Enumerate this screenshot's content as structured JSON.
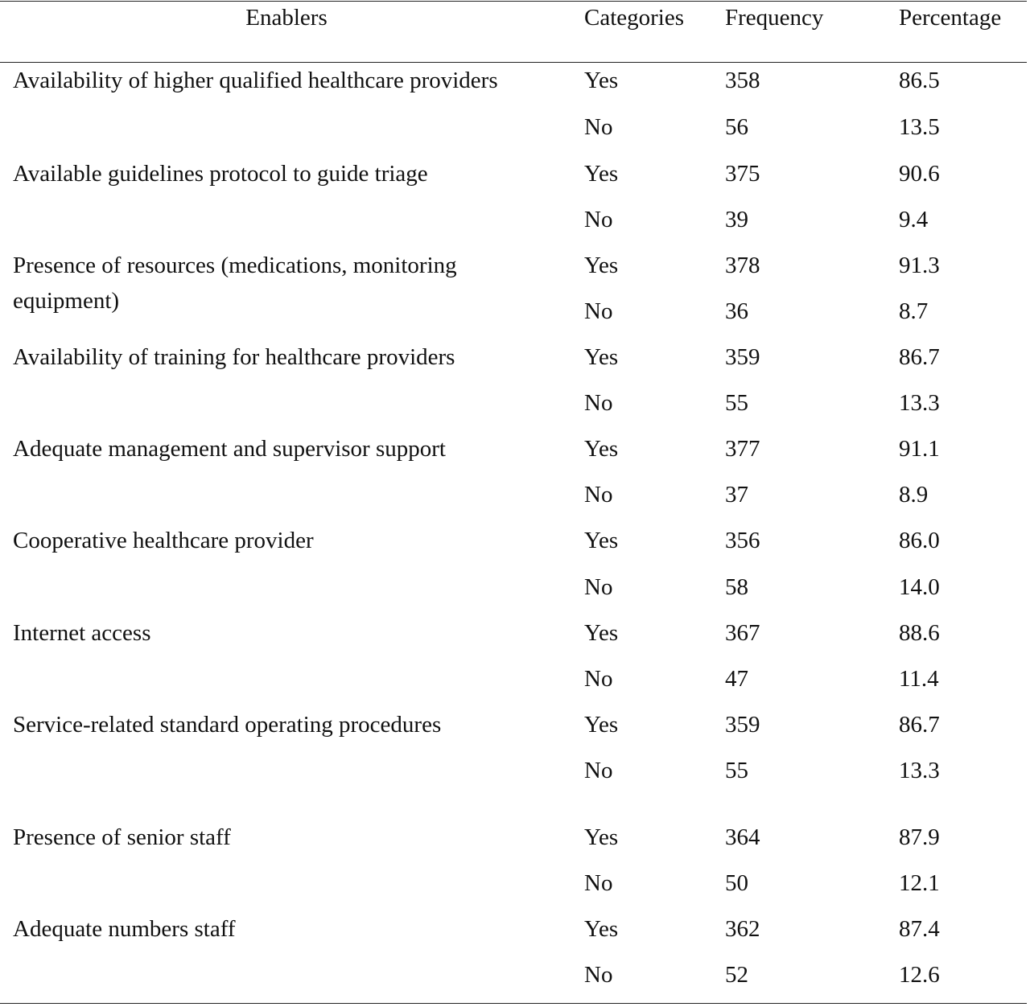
{
  "table": {
    "headers": {
      "enablers": "Enablers",
      "categories": "Categories",
      "frequency": "Frequency",
      "percentage": "Percentage"
    },
    "rows": [
      {
        "enabler": "Availability of higher qualified healthcare providers",
        "yes": {
          "category": "Yes",
          "frequency": "358",
          "percentage": "86.5"
        },
        "no": {
          "category": "No",
          "frequency": "56",
          "percentage": "13.5"
        }
      },
      {
        "enabler": "Available guidelines protocol to guide triage",
        "yes": {
          "category": "Yes",
          "frequency": "375",
          "percentage": "90.6"
        },
        "no": {
          "category": "No",
          "frequency": "39",
          "percentage": "9.4"
        }
      },
      {
        "enabler": "Presence of resources (medications, monitoring equipment)",
        "yes": {
          "category": "Yes",
          "frequency": "378",
          "percentage": "91.3"
        },
        "no": {
          "category": "No",
          "frequency": "36",
          "percentage": "8.7"
        }
      },
      {
        "enabler": "Availability of training for healthcare providers",
        "yes": {
          "category": "Yes",
          "frequency": "359",
          "percentage": "86.7"
        },
        "no": {
          "category": "No",
          "frequency": "55",
          "percentage": "13.3"
        }
      },
      {
        "enabler": "Adequate management and supervisor support",
        "yes": {
          "category": "Yes",
          "frequency": "377",
          "percentage": "91.1"
        },
        "no": {
          "category": "No",
          "frequency": "37",
          "percentage": "8.9"
        }
      },
      {
        "enabler": "Cooperative healthcare provider",
        "yes": {
          "category": "Yes",
          "frequency": "356",
          "percentage": "86.0"
        },
        "no": {
          "category": "No",
          "frequency": "58",
          "percentage": "14.0"
        }
      },
      {
        "enabler": "Internet access",
        "yes": {
          "category": "Yes",
          "frequency": "367",
          "percentage": "88.6"
        },
        "no": {
          "category": "No",
          "frequency": "47",
          "percentage": "11.4"
        }
      },
      {
        "enabler": "Service-related standard operating procedures",
        "yes": {
          "category": "Yes",
          "frequency": "359",
          "percentage": "86.7"
        },
        "no": {
          "category": "No",
          "frequency": "55",
          "percentage": "13.3"
        }
      },
      {
        "enabler": "Presence of senior staff",
        "yes": {
          "category": "Yes",
          "frequency": "364",
          "percentage": "87.9"
        },
        "no": {
          "category": "No",
          "frequency": "50",
          "percentage": "12.1"
        }
      },
      {
        "enabler": "Adequate numbers staff",
        "yes": {
          "category": "Yes",
          "frequency": "362",
          "percentage": "87.4"
        },
        "no": {
          "category": "No",
          "frequency": "52",
          "percentage": "12.6"
        }
      }
    ]
  }
}
